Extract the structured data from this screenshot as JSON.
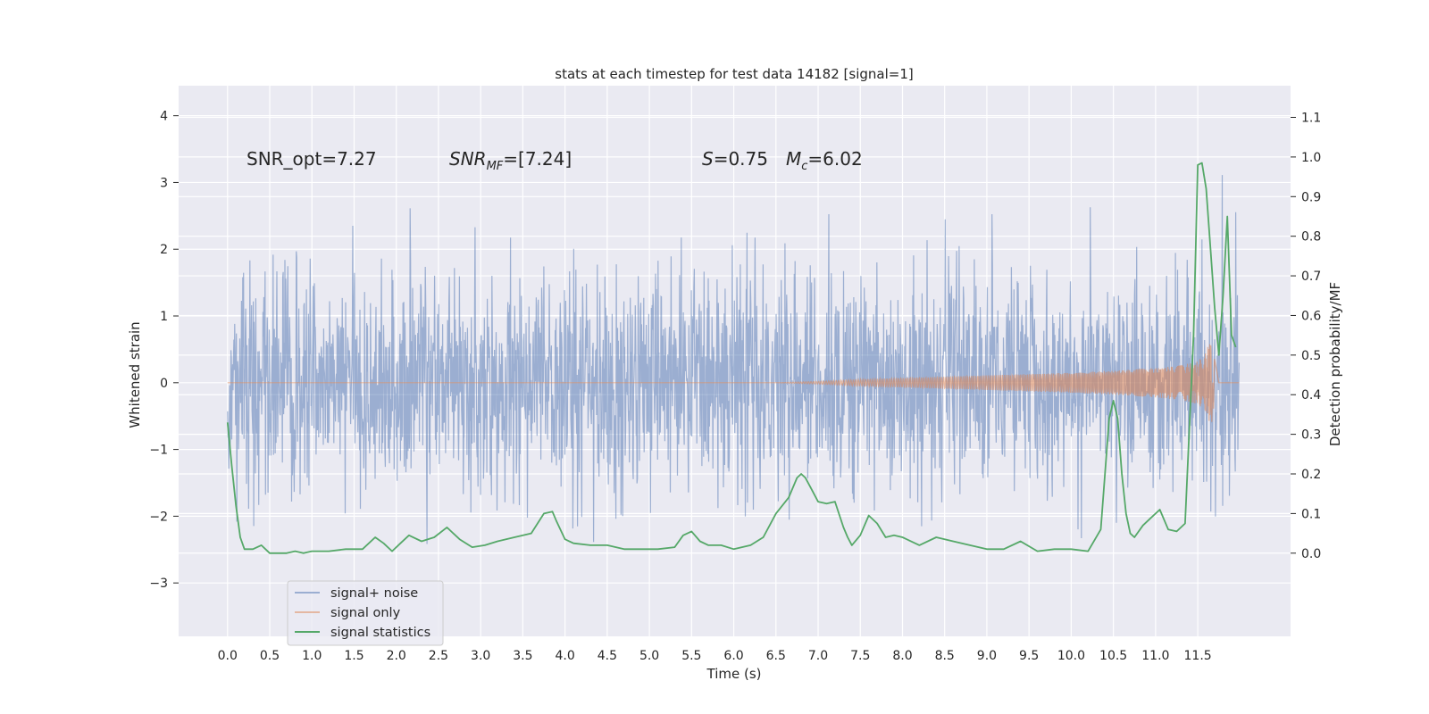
{
  "chart_data": {
    "type": "line",
    "title": "stats at each timestep for test data 14182 [signal=1]",
    "xlabel": "Time (s)",
    "ylabel_left": "Whitened strain",
    "ylabel_right": "Detection probability/MF",
    "xlim": [
      -0.58,
      12.6
    ],
    "ylim_left": [
      -3.8,
      4.45
    ],
    "ylim_right": [
      -0.21,
      1.18
    ],
    "x_ticks": [
      0.0,
      0.5,
      1.0,
      1.5,
      2.0,
      2.5,
      3.0,
      3.5,
      4.0,
      4.5,
      5.0,
      5.5,
      6.0,
      6.5,
      7.0,
      7.5,
      8.0,
      8.5,
      9.0,
      9.5,
      10.0,
      10.5,
      11.0,
      11.5
    ],
    "x_tick_labels": [
      "0.0",
      "0.5",
      "1.0",
      "1.5",
      "2.0",
      "2.5",
      "3.0",
      "3.5",
      "4.0",
      "4.5",
      "5.0",
      "5.5",
      "6.0",
      "6.5",
      "7.0",
      "7.5",
      "8.0",
      "8.5",
      "9.0",
      "9.5",
      "10.0",
      "10.5",
      "11.0",
      "11.5"
    ],
    "y_left_ticks": [
      -3,
      -2,
      -1,
      0,
      1,
      2,
      3,
      4
    ],
    "y_left_tick_labels": [
      "−3",
      "−2",
      "−1",
      "0",
      "1",
      "2",
      "3",
      "4"
    ],
    "y_right_ticks": [
      0.0,
      0.1,
      0.2,
      0.3,
      0.4,
      0.5,
      0.6,
      0.7,
      0.8,
      0.9,
      1.0,
      1.1
    ],
    "y_right_tick_labels": [
      "0.0",
      "0.1",
      "0.2",
      "0.3",
      "0.4",
      "0.5",
      "0.6",
      "0.7",
      "0.8",
      "0.9",
      "1.0",
      "1.1"
    ],
    "grid": true,
    "legend_position": "lower-left",
    "annotations": {
      "snr_opt": "SNR_opt=7.27",
      "snr_mf_main": "SNR",
      "snr_mf_sub": "MF",
      "snr_mf_value": "=[7.24]",
      "s_symbol": "S",
      "s_value": "=0.75",
      "mc_main": "M",
      "mc_sub": "c",
      "mc_value": "=6.02"
    },
    "series": [
      {
        "name": "signal+ noise",
        "axis": "left",
        "color": "#4c72b0",
        "x_range": [
          0.0,
          11.99
        ],
        "noise_envelope_description": "dense noise between about -3.4 and 4.1"
      },
      {
        "name": "signal only",
        "axis": "left",
        "color": "#dd8452",
        "envelope": {
          "x": [
            0.0,
            6.5,
            7.0,
            7.5,
            8.0,
            8.5,
            9.0,
            9.5,
            10.0,
            10.5,
            11.0,
            11.3,
            11.5,
            11.6,
            11.65,
            11.7,
            11.75,
            11.99
          ],
          "amplitude": [
            0.0,
            0.0,
            0.02,
            0.05,
            0.07,
            0.09,
            0.11,
            0.13,
            0.15,
            0.18,
            0.22,
            0.26,
            0.32,
            0.45,
            0.7,
            0.35,
            0.0,
            0.0
          ]
        }
      },
      {
        "name": "signal statistics",
        "axis": "right",
        "color": "#55a868",
        "x": [
          0.0,
          0.05,
          0.1,
          0.15,
          0.2,
          0.3,
          0.4,
          0.5,
          0.6,
          0.7,
          0.8,
          0.9,
          1.0,
          1.2,
          1.4,
          1.6,
          1.75,
          1.85,
          1.95,
          2.05,
          2.15,
          2.3,
          2.45,
          2.6,
          2.75,
          2.9,
          3.05,
          3.2,
          3.4,
          3.6,
          3.75,
          3.85,
          3.9,
          4.0,
          4.1,
          4.3,
          4.5,
          4.7,
          4.9,
          5.1,
          5.3,
          5.4,
          5.5,
          5.6,
          5.7,
          5.85,
          6.0,
          6.2,
          6.35,
          6.5,
          6.65,
          6.75,
          6.8,
          6.85,
          6.9,
          7.0,
          7.1,
          7.2,
          7.3,
          7.35,
          7.4,
          7.5,
          7.6,
          7.7,
          7.8,
          7.9,
          8.0,
          8.2,
          8.4,
          8.6,
          8.8,
          9.0,
          9.2,
          9.4,
          9.6,
          9.8,
          10.0,
          10.2,
          10.35,
          10.45,
          10.5,
          10.55,
          10.6,
          10.65,
          10.7,
          10.75,
          10.85,
          10.95,
          11.05,
          11.15,
          11.25,
          11.35,
          11.45,
          11.5,
          11.55,
          11.6,
          11.65,
          11.7,
          11.75,
          11.8,
          11.85,
          11.9,
          11.95
        ],
        "y": [
          0.33,
          0.22,
          0.12,
          0.04,
          0.01,
          0.01,
          0.02,
          0.0,
          0.0,
          0.0,
          0.005,
          0.0,
          0.005,
          0.005,
          0.01,
          0.01,
          0.04,
          0.025,
          0.005,
          0.025,
          0.045,
          0.03,
          0.04,
          0.065,
          0.035,
          0.015,
          0.02,
          0.03,
          0.04,
          0.05,
          0.1,
          0.105,
          0.08,
          0.035,
          0.025,
          0.02,
          0.02,
          0.01,
          0.01,
          0.01,
          0.015,
          0.045,
          0.055,
          0.03,
          0.02,
          0.02,
          0.01,
          0.02,
          0.04,
          0.1,
          0.14,
          0.19,
          0.2,
          0.19,
          0.17,
          0.13,
          0.125,
          0.13,
          0.065,
          0.04,
          0.02,
          0.045,
          0.095,
          0.075,
          0.04,
          0.045,
          0.04,
          0.02,
          0.04,
          0.03,
          0.02,
          0.01,
          0.01,
          0.03,
          0.005,
          0.01,
          0.01,
          0.005,
          0.06,
          0.34,
          0.385,
          0.34,
          0.2,
          0.1,
          0.05,
          0.04,
          0.07,
          0.09,
          0.11,
          0.06,
          0.055,
          0.075,
          0.55,
          0.98,
          0.985,
          0.92,
          0.77,
          0.62,
          0.5,
          0.65,
          0.85,
          0.55,
          0.52
        ]
      }
    ]
  }
}
